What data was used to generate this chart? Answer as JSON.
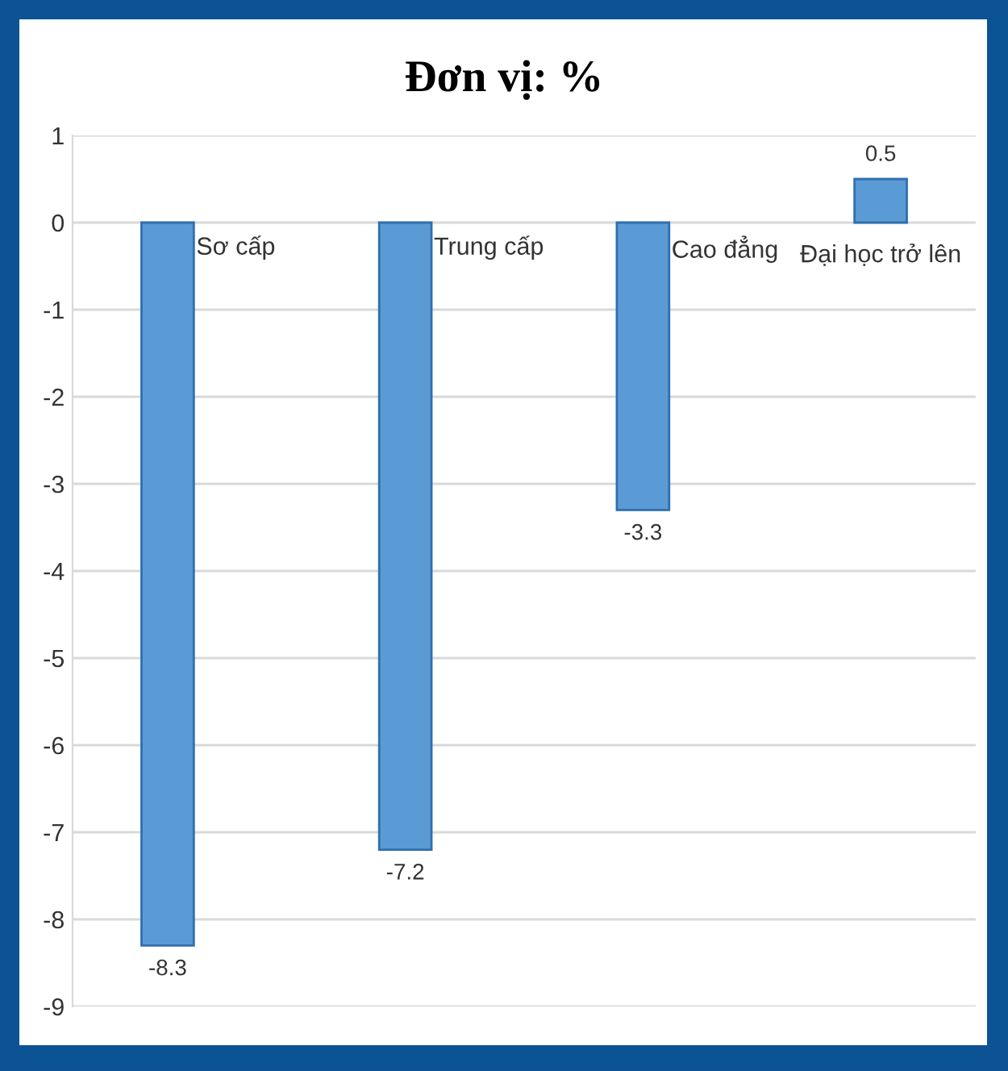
{
  "chart_data": {
    "type": "bar",
    "title": "Đơn vị: %",
    "categories": [
      "Sơ cấp",
      "Trung cấp",
      "Cao đẳng",
      "Đại học trở lên"
    ],
    "values": [
      -8.3,
      -7.2,
      -3.3,
      0.5
    ],
    "color": "#5b9bd5",
    "ylim": [
      -9,
      1
    ],
    "yticks": [
      -9,
      -8,
      -7,
      -6,
      -5,
      -4,
      -3,
      -2,
      -1,
      0,
      1
    ],
    "grid": "y",
    "data_labels": true,
    "legend": false
  }
}
